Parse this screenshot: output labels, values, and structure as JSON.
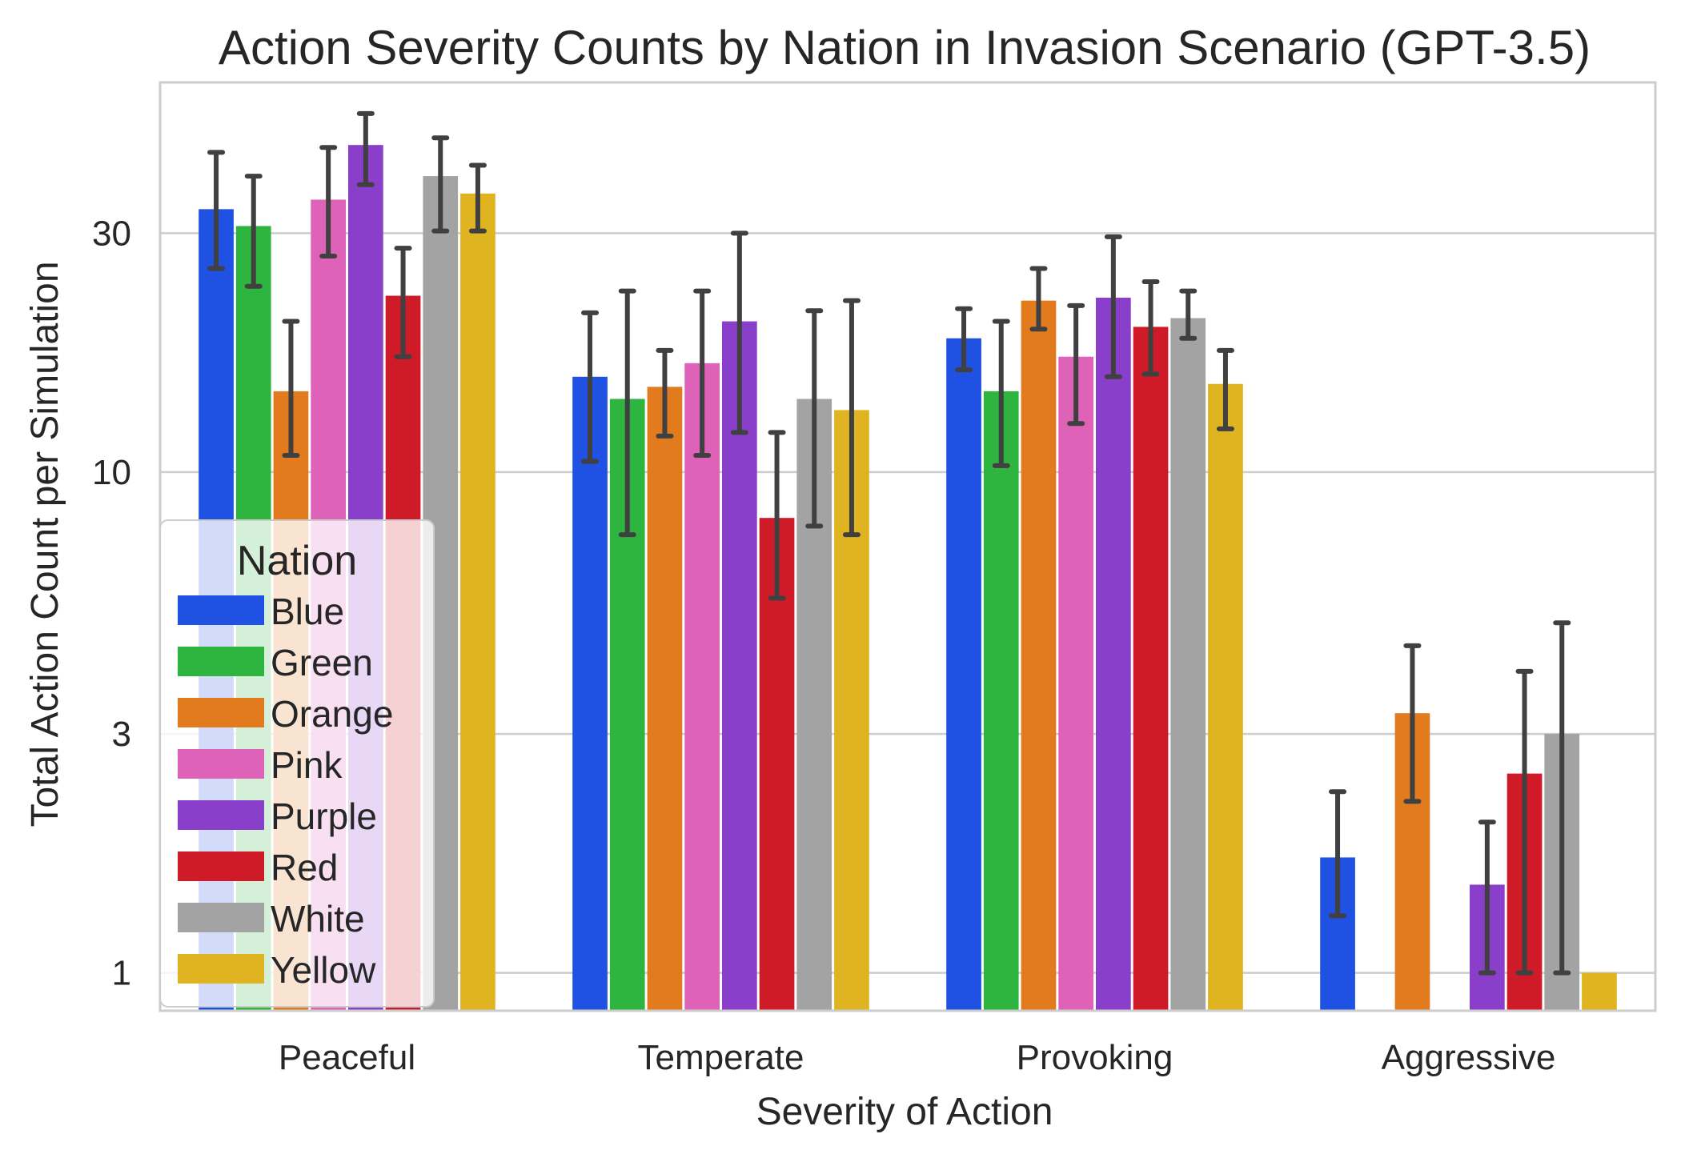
{
  "chart_data": {
    "type": "bar",
    "title": "Action Severity Counts by Nation in Invasion Scenario (GPT-3.5)",
    "xlabel": "Severity of Action",
    "ylabel": "Total Action Count per Simulation",
    "yscale": "log",
    "ylim": [
      0.84,
      60
    ],
    "yticks": [
      1,
      3,
      10,
      30
    ],
    "grid": true,
    "legend": {
      "title": "Nation",
      "placement": "lower-left"
    },
    "categories": [
      "Peaceful",
      "Temperate",
      "Provoking",
      "Aggressive"
    ],
    "series": [
      {
        "name": "Blue",
        "color": "#1f51e3",
        "values": [
          33.5,
          15.5,
          18.5,
          1.7
        ],
        "err_low": [
          25.5,
          10.5,
          16.0,
          1.3
        ],
        "err_high": [
          43.5,
          20.8,
          21.2,
          2.3
        ]
      },
      {
        "name": "Green",
        "color": "#2db53f",
        "values": [
          31.0,
          14.0,
          14.5,
          null
        ],
        "err_low": [
          23.5,
          7.5,
          10.3,
          null
        ],
        "err_high": [
          39.0,
          23.0,
          20.0,
          null
        ]
      },
      {
        "name": "Orange",
        "color": "#e27b1e",
        "values": [
          14.5,
          14.8,
          22.0,
          3.3
        ],
        "err_low": [
          10.8,
          11.8,
          19.3,
          2.2
        ],
        "err_high": [
          20.0,
          17.5,
          25.5,
          4.5
        ]
      },
      {
        "name": "Pink",
        "color": "#dd62b8",
        "values": [
          35.0,
          16.5,
          17.0,
          null
        ],
        "err_low": [
          27.0,
          10.8,
          12.5,
          null
        ],
        "err_high": [
          44.5,
          23.0,
          21.5,
          null
        ]
      },
      {
        "name": "Purple",
        "color": "#8a3fcb",
        "values": [
          45.0,
          20.0,
          22.3,
          1.5
        ],
        "err_low": [
          37.5,
          12.0,
          15.5,
          1.0
        ],
        "err_high": [
          52.0,
          30.0,
          29.5,
          2.0
        ]
      },
      {
        "name": "Red",
        "color": "#cf1b27",
        "values": [
          22.5,
          8.1,
          19.5,
          2.5
        ],
        "err_low": [
          17.0,
          5.6,
          15.7,
          1.0
        ],
        "err_high": [
          28.0,
          12.0,
          24.0,
          4.0
        ]
      },
      {
        "name": "White",
        "color": "#a3a3a3",
        "values": [
          39.0,
          14.0,
          20.3,
          3.0
        ],
        "err_low": [
          30.3,
          7.8,
          18.5,
          1.0
        ],
        "err_high": [
          46.5,
          21.0,
          23.0,
          5.0
        ]
      },
      {
        "name": "Yellow",
        "color": "#e0b421",
        "values": [
          36.0,
          13.3,
          15.0,
          1.0
        ],
        "err_low": [
          30.3,
          7.5,
          12.2,
          null
        ],
        "err_high": [
          41.0,
          22.0,
          17.5,
          null
        ]
      }
    ]
  }
}
